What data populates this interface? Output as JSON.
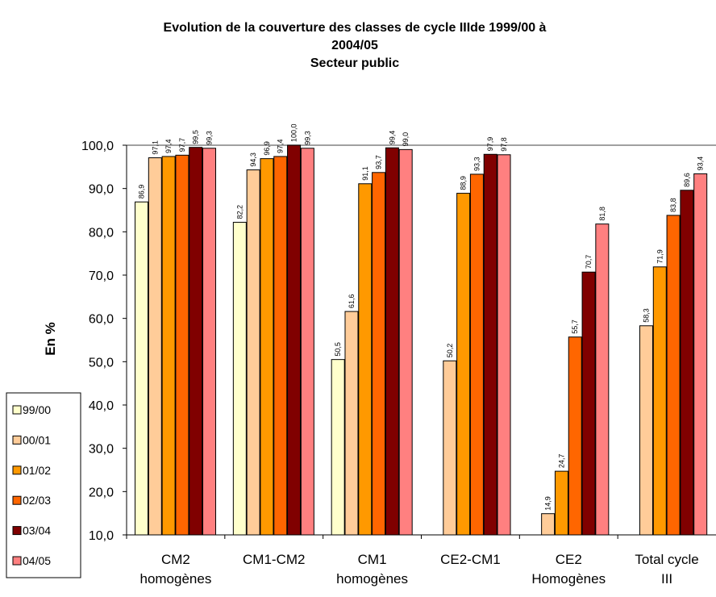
{
  "chart_data": {
    "type": "bar",
    "title": "Evolution de la couverture des classes de cycle IIIde 1999/00 à\n2004/05",
    "subtitle": "Secteur public",
    "y_label": "En %",
    "categories": [
      "CM2\nhomogènes",
      "CM1-CM2",
      "CM1\nhomogènes",
      "CE2-CM1",
      "CE2\nHomogènes",
      "Total cycle\nIII"
    ],
    "series": [
      {
        "name": "99/00",
        "color": "#ffffcc",
        "values": [
          86.9,
          82.2,
          50.5,
          null,
          null,
          null
        ],
        "value_labels": [
          "86,9",
          "82,2",
          "50,5",
          null,
          null,
          null
        ]
      },
      {
        "name": "00/01",
        "color": "#ffcc99",
        "values": [
          97.1,
          94.3,
          61.6,
          50.2,
          14.9,
          58.3
        ],
        "value_labels": [
          "97,1",
          "94,3",
          "61,6",
          "50,2",
          "14,9",
          "58,3"
        ]
      },
      {
        "name": "01/02",
        "color": "#ff9900",
        "values": [
          97.4,
          96.9,
          91.1,
          88.9,
          24.7,
          71.9
        ],
        "value_labels": [
          "97,4",
          "96,9",
          "91,1",
          "88,9",
          "24,7",
          "71,9"
        ]
      },
      {
        "name": "02/03",
        "color": "#ff6600",
        "values": [
          97.7,
          97.4,
          93.7,
          93.3,
          55.7,
          83.8
        ],
        "value_labels": [
          "97,7",
          "97,4",
          "93,7",
          "93,3",
          "55,7",
          "83,8"
        ]
      },
      {
        "name": "03/04",
        "color": "#800000",
        "values": [
          99.5,
          100.0,
          99.4,
          97.9,
          70.7,
          89.6
        ],
        "value_labels": [
          "99,5",
          "100,0",
          "99,4",
          "97,9",
          "70,7",
          "89,6"
        ]
      },
      {
        "name": "04/05",
        "color": "#ff8080",
        "values": [
          99.3,
          99.3,
          99.0,
          97.8,
          81.8,
          93.4
        ],
        "value_labels": [
          "99,3",
          "99,3",
          "99,0",
          "97,8",
          "81,8",
          "93,4"
        ]
      }
    ],
    "ylim": [
      10,
      100
    ],
    "yticks": [
      {
        "value": 10,
        "label": "10,0"
      },
      {
        "value": 20,
        "label": "20,0"
      },
      {
        "value": 30,
        "label": "30,0"
      },
      {
        "value": 40,
        "label": "40,0"
      },
      {
        "value": 50,
        "label": "50,0"
      },
      {
        "value": 60,
        "label": "60,0"
      },
      {
        "value": 70,
        "label": "70,0"
      },
      {
        "value": 80,
        "label": "80,0"
      },
      {
        "value": 90,
        "label": "90,0"
      },
      {
        "value": 100,
        "label": "100,0"
      }
    ],
    "legend": "left"
  }
}
